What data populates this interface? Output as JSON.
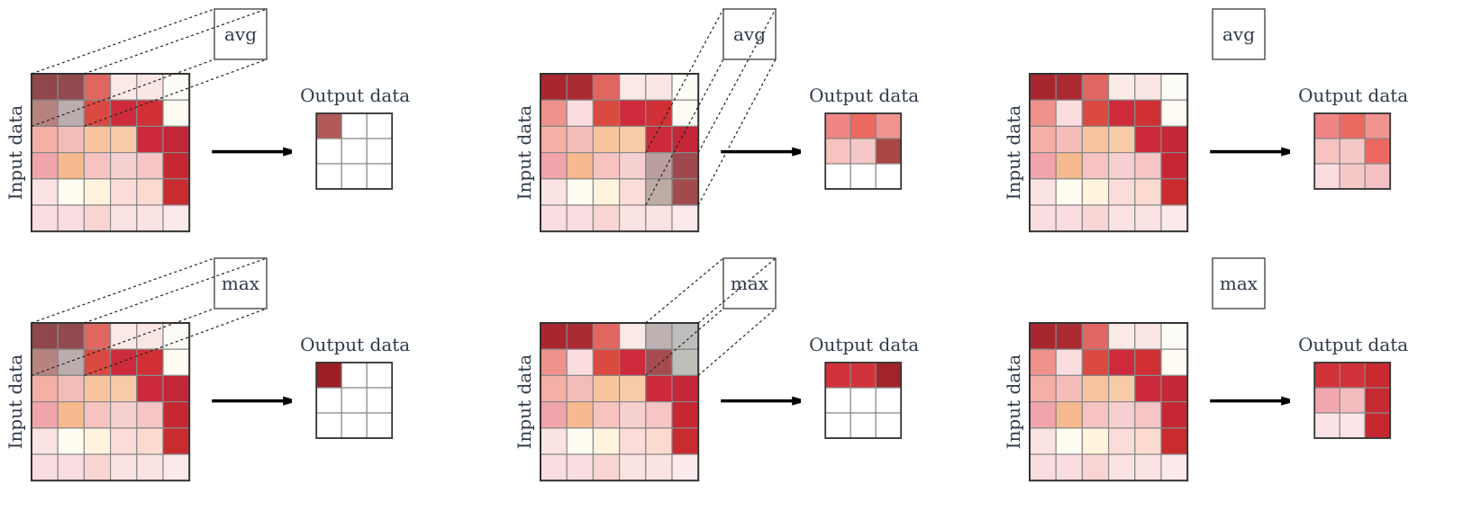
{
  "labels": {
    "input": "Input data",
    "output": "Output data",
    "avg": "avg",
    "max": "max"
  },
  "colors": {
    "grid_line": "#888888",
    "frame": "#333333",
    "arrow": "#000000"
  },
  "input_grid": [
    [
      "#a8262e",
      "#ab2b33",
      "#e06662",
      "#fbe9e6",
      "#fbe6e6",
      "#fefcf7"
    ],
    [
      "#ef928b",
      "#fbdcdf",
      "#da4a40",
      "#cd2b3c",
      "#cf2f35",
      "#fffcf3"
    ],
    [
      "#f4afa6",
      "#f4bcb8",
      "#f8c49d",
      "#f8cba8",
      "#cc2a3c",
      "#c42737"
    ],
    [
      "#f1a4aa",
      "#f6ba8e",
      "#f7c3c1",
      "#f6d0d0",
      "#f7c5c6",
      "#c62733"
    ],
    [
      "#fbe2e3",
      "#fffdf1",
      "#fff3dd",
      "#fcdcd8",
      "#fbdad0",
      "#c92c2f"
    ],
    [
      "#f9dde0",
      "#f9dde0",
      "#f8d4d3",
      "#fbe2e3",
      "#fbe2e3",
      "#fce9ec"
    ]
  ],
  "panels": [
    {
      "op": "avg",
      "window": [
        0,
        0
      ],
      "output": [
        [
          "#b25a58",
          "#ffffff",
          "#ffffff"
        ],
        [
          "#ffffff",
          "#ffffff",
          "#ffffff"
        ],
        [
          "#ffffff",
          "#ffffff",
          "#ffffff"
        ]
      ],
      "show_overlay": true
    },
    {
      "op": "avg",
      "window": [
        3,
        4
      ],
      "output": [
        [
          "#ef8585",
          "#ec6961",
          "#f19490"
        ],
        [
          "#f6c3c0",
          "#f5c8c7",
          "#a84743"
        ],
        [
          "#ffffff",
          "#ffffff",
          "#ffffff"
        ]
      ],
      "show_overlay": true
    },
    {
      "op": "avg",
      "window": null,
      "output": [
        [
          "#ef8585",
          "#ec6961",
          "#f19490"
        ],
        [
          "#f6c3c0",
          "#f5c8c7",
          "#ec6961"
        ],
        [
          "#fbdde0",
          "#f6c8c7",
          "#f4c0c3"
        ]
      ],
      "show_overlay": false
    },
    {
      "op": "max",
      "window": [
        0,
        0
      ],
      "output": [
        [
          "#9b1f24",
          "#ffffff",
          "#ffffff"
        ],
        [
          "#ffffff",
          "#ffffff",
          "#ffffff"
        ],
        [
          "#ffffff",
          "#ffffff",
          "#ffffff"
        ]
      ],
      "show_overlay": true
    },
    {
      "op": "max",
      "window": [
        0,
        4
      ],
      "output": [
        [
          "#d2333a",
          "#d2333a",
          "#a3232a"
        ],
        [
          "#ffffff",
          "#ffffff",
          "#ffffff"
        ],
        [
          "#ffffff",
          "#ffffff",
          "#ffffff"
        ]
      ],
      "show_overlay": true
    },
    {
      "op": "max",
      "window": null,
      "output": [
        [
          "#d2333a",
          "#d2333a",
          "#c72a30"
        ],
        [
          "#f2a6ae",
          "#f3bbbd",
          "#c52a32"
        ],
        [
          "#fae3e6",
          "#fbe5e9",
          "#c62830"
        ]
      ],
      "show_overlay": false
    }
  ]
}
